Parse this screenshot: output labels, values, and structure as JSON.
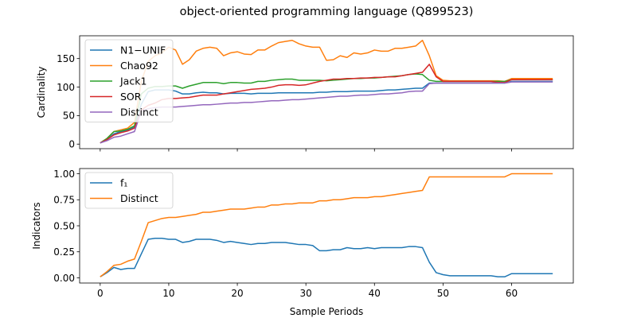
{
  "figure": {
    "title": "object-oriented programming language (Q899523)",
    "xlabel": "Sample Periods"
  },
  "chart_data": [
    {
      "type": "line",
      "ylabel": "Cardinality",
      "xlim": [
        -3,
        69
      ],
      "ylim": [
        -8,
        190
      ],
      "xticks": [
        0,
        10,
        20,
        30,
        40,
        50,
        60
      ],
      "yticks": [
        0,
        50,
        100,
        150
      ],
      "show_xticklabels": false,
      "legend_position": "upper-left",
      "x": [
        0,
        1,
        2,
        3,
        4,
        5,
        6,
        7,
        8,
        9,
        10,
        11,
        12,
        13,
        14,
        15,
        16,
        17,
        18,
        19,
        20,
        21,
        22,
        23,
        24,
        25,
        26,
        27,
        28,
        29,
        30,
        31,
        32,
        33,
        34,
        35,
        36,
        37,
        38,
        39,
        40,
        41,
        42,
        43,
        44,
        45,
        46,
        47,
        48,
        49,
        50,
        51,
        52,
        53,
        54,
        55,
        56,
        57,
        58,
        59,
        60,
        61,
        62,
        63,
        64,
        65,
        66
      ],
      "series": [
        {
          "name": "N1−UNIF",
          "color": "#1f77b4",
          "values": [
            2,
            8,
            18,
            22,
            24,
            30,
            70,
            92,
            95,
            95,
            95,
            93,
            88,
            88,
            90,
            91,
            90,
            90,
            88,
            89,
            89,
            89,
            88,
            89,
            89,
            89,
            90,
            90,
            90,
            90,
            90,
            90,
            91,
            91,
            92,
            92,
            92,
            93,
            93,
            93,
            93,
            94,
            95,
            95,
            96,
            97,
            98,
            98,
            107,
            107,
            107,
            107,
            107,
            107,
            107,
            107,
            107,
            107,
            107,
            107,
            110,
            110,
            110,
            110,
            110,
            110,
            110
          ]
        },
        {
          "name": "Chao92",
          "color": "#ff7f0e",
          "values": [
            2,
            10,
            22,
            25,
            28,
            38,
            110,
            145,
            155,
            160,
            170,
            165,
            140,
            148,
            163,
            168,
            170,
            168,
            155,
            160,
            162,
            158,
            157,
            165,
            165,
            172,
            178,
            180,
            182,
            176,
            172,
            170,
            170,
            147,
            148,
            155,
            152,
            160,
            158,
            160,
            165,
            163,
            163,
            168,
            168,
            170,
            172,
            182,
            155,
            120,
            112,
            111,
            111,
            111,
            111,
            111,
            111,
            111,
            111,
            110,
            115,
            115,
            115,
            115,
            115,
            115,
            115
          ]
        },
        {
          "name": "Jack1",
          "color": "#2ca02c",
          "values": [
            2,
            10,
            22,
            23,
            26,
            32,
            88,
            98,
            101,
            101,
            102,
            102,
            98,
            102,
            105,
            108,
            108,
            108,
            106,
            108,
            108,
            107,
            107,
            110,
            110,
            112,
            113,
            114,
            114,
            112,
            112,
            112,
            112,
            111,
            112,
            113,
            114,
            115,
            115,
            116,
            116,
            117,
            118,
            119,
            120,
            122,
            123,
            122,
            112,
            110,
            110,
            110,
            110,
            110,
            110,
            110,
            110,
            110,
            110,
            110,
            113,
            113,
            113,
            113,
            113,
            113,
            113
          ]
        },
        {
          "name": "SOR",
          "color": "#d62728",
          "values": [
            2,
            8,
            16,
            20,
            23,
            28,
            60,
            68,
            72,
            78,
            80,
            80,
            81,
            82,
            84,
            86,
            86,
            86,
            88,
            90,
            92,
            94,
            96,
            97,
            98,
            100,
            103,
            104,
            104,
            103,
            104,
            107,
            110,
            112,
            114,
            114,
            115,
            115,
            116,
            116,
            117,
            117,
            118,
            118,
            120,
            122,
            124,
            126,
            140,
            118,
            110,
            110,
            110,
            110,
            110,
            110,
            110,
            110,
            108,
            108,
            113,
            113,
            113,
            113,
            113,
            113,
            113
          ]
        },
        {
          "name": "Distinct",
          "color": "#9467bd",
          "values": [
            2,
            6,
            12,
            14,
            18,
            22,
            58,
            62,
            64,
            65,
            65,
            65,
            66,
            67,
            68,
            69,
            69,
            70,
            71,
            72,
            72,
            73,
            73,
            74,
            75,
            76,
            76,
            77,
            78,
            78,
            79,
            80,
            81,
            82,
            83,
            84,
            84,
            85,
            86,
            86,
            87,
            88,
            88,
            89,
            90,
            92,
            93,
            93,
            106,
            107,
            107,
            107,
            107,
            107,
            107,
            107,
            107,
            107,
            107,
            107,
            109,
            109,
            109,
            109,
            109,
            109,
            109
          ]
        }
      ]
    },
    {
      "type": "line",
      "ylabel": "Indicators",
      "xlim": [
        -3,
        69
      ],
      "ylim": [
        -0.05,
        1.05
      ],
      "xticks": [
        0,
        10,
        20,
        30,
        40,
        50,
        60
      ],
      "yticks": [
        0.0,
        0.25,
        0.5,
        0.75,
        1.0
      ],
      "ytick_labels": [
        "0.00",
        "0.25",
        "0.50",
        "0.75",
        "1.00"
      ],
      "show_xticklabels": true,
      "legend_position": "upper-left",
      "x": [
        0,
        1,
        2,
        3,
        4,
        5,
        6,
        7,
        8,
        9,
        10,
        11,
        12,
        13,
        14,
        15,
        16,
        17,
        18,
        19,
        20,
        21,
        22,
        23,
        24,
        25,
        26,
        27,
        28,
        29,
        30,
        31,
        32,
        33,
        34,
        35,
        36,
        37,
        38,
        39,
        40,
        41,
        42,
        43,
        44,
        45,
        46,
        47,
        48,
        49,
        50,
        51,
        52,
        53,
        54,
        55,
        56,
        57,
        58,
        59,
        60,
        61,
        62,
        63,
        64,
        65,
        66
      ],
      "series": [
        {
          "name": "f₁",
          "color": "#1f77b4",
          "values": [
            0.01,
            0.05,
            0.1,
            0.08,
            0.09,
            0.09,
            0.23,
            0.37,
            0.38,
            0.38,
            0.37,
            0.37,
            0.34,
            0.35,
            0.37,
            0.37,
            0.37,
            0.36,
            0.34,
            0.35,
            0.34,
            0.33,
            0.32,
            0.33,
            0.33,
            0.34,
            0.34,
            0.34,
            0.33,
            0.32,
            0.32,
            0.31,
            0.26,
            0.26,
            0.27,
            0.27,
            0.29,
            0.28,
            0.28,
            0.29,
            0.28,
            0.29,
            0.29,
            0.29,
            0.29,
            0.3,
            0.3,
            0.29,
            0.15,
            0.05,
            0.03,
            0.02,
            0.02,
            0.02,
            0.02,
            0.02,
            0.02,
            0.02,
            0.01,
            0.01,
            0.04,
            0.04,
            0.04,
            0.04,
            0.04,
            0.04,
            0.04
          ]
        },
        {
          "name": "Distinct",
          "color": "#ff7f0e",
          "values": [
            0.01,
            0.06,
            0.12,
            0.13,
            0.16,
            0.18,
            0.35,
            0.53,
            0.55,
            0.57,
            0.58,
            0.58,
            0.59,
            0.6,
            0.61,
            0.63,
            0.63,
            0.64,
            0.65,
            0.66,
            0.66,
            0.66,
            0.67,
            0.68,
            0.68,
            0.7,
            0.7,
            0.71,
            0.71,
            0.72,
            0.72,
            0.72,
            0.74,
            0.74,
            0.75,
            0.75,
            0.76,
            0.77,
            0.77,
            0.77,
            0.78,
            0.78,
            0.79,
            0.8,
            0.81,
            0.82,
            0.83,
            0.84,
            0.97,
            0.97,
            0.97,
            0.97,
            0.97,
            0.97,
            0.97,
            0.97,
            0.97,
            0.97,
            0.97,
            0.97,
            1.0,
            1.0,
            1.0,
            1.0,
            1.0,
            1.0,
            1.0
          ]
        }
      ]
    }
  ]
}
